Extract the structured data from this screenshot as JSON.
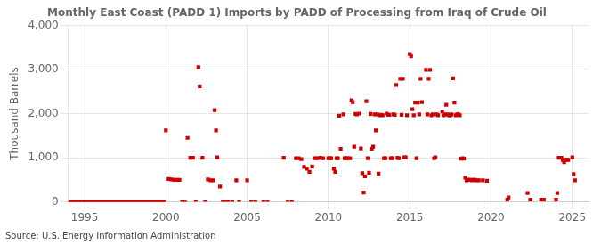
{
  "chart_data": {
    "type": "scatter",
    "title": "Monthly East Coast (PADD 1) Imports by PADD of Processing from Iraq of Crude Oil",
    "ylabel": "Thousand Barrels",
    "source": "Source: U.S. Energy Information Administration",
    "color": "#cc0000",
    "marker": "square",
    "grid": true,
    "xlim": [
      1994.0,
      2026.0
    ],
    "ylim": [
      0,
      4000
    ],
    "xticks": [
      1995,
      2000,
      2005,
      2010,
      2015,
      2020,
      2025
    ],
    "yticks": [
      0,
      {
        "value": 1000,
        "label": "1,000"
      },
      {
        "value": 2000,
        "label": "2,000"
      },
      {
        "value": 3000,
        "label": "3,000"
      },
      {
        "value": 4000,
        "label": "4,000"
      }
    ],
    "x": [
      1994.083,
      1994.167,
      1994.25,
      1994.333,
      1994.417,
      1994.5,
      1994.583,
      1994.667,
      1994.75,
      1994.833,
      1994.917,
      1995.0,
      1995.083,
      1995.167,
      1995.25,
      1995.333,
      1995.417,
      1995.5,
      1995.583,
      1995.667,
      1995.75,
      1995.833,
      1995.917,
      1996.0,
      1996.083,
      1996.167,
      1996.25,
      1996.333,
      1996.417,
      1996.5,
      1996.583,
      1996.667,
      1996.75,
      1996.833,
      1996.917,
      1997.0,
      1997.083,
      1997.167,
      1997.25,
      1997.333,
      1997.417,
      1997.5,
      1997.583,
      1997.667,
      1997.75,
      1997.833,
      1997.917,
      1998.0,
      1998.083,
      1998.167,
      1998.25,
      1998.333,
      1998.417,
      1998.5,
      1998.583,
      1998.667,
      1998.75,
      1998.833,
      1998.917,
      1999.0,
      1999.083,
      1999.167,
      1999.25,
      1999.333,
      1999.417,
      1999.5,
      1999.583,
      1999.667,
      1999.75,
      1999.833,
      1999.917,
      2000.0,
      2000.167,
      2000.333,
      2000.5,
      2000.667,
      2000.833,
      2001.0,
      2001.167,
      2001.333,
      2001.5,
      2001.667,
      2001.833,
      2002.0,
      2002.083,
      2002.25,
      2002.417,
      2002.583,
      2002.75,
      2002.917,
      2003.0,
      2003.083,
      2003.167,
      2003.333,
      2003.5,
      2003.667,
      2003.833,
      2004.083,
      2004.333,
      2004.5,
      2005.0,
      2005.25,
      2005.5,
      2006.0,
      2006.25,
      2007.25,
      2007.5,
      2007.75,
      2008.0,
      2008.167,
      2008.333,
      2008.5,
      2008.667,
      2008.833,
      2009.0,
      2009.167,
      2009.333,
      2009.5,
      2009.667,
      2010.0,
      2010.083,
      2010.167,
      2010.333,
      2010.417,
      2010.5,
      2010.583,
      2010.667,
      2010.75,
      2010.917,
      2011.0,
      2011.083,
      2011.167,
      2011.333,
      2011.417,
      2011.5,
      2011.583,
      2011.667,
      2011.75,
      2011.917,
      2012.0,
      2012.083,
      2012.167,
      2012.25,
      2012.333,
      2012.417,
      2012.5,
      2012.583,
      2012.667,
      2012.75,
      2012.833,
      2012.917,
      2013.0,
      2013.083,
      2013.167,
      2013.25,
      2013.333,
      2013.417,
      2013.5,
      2013.583,
      2013.667,
      2013.75,
      2013.833,
      2013.917,
      2014.0,
      2014.083,
      2014.167,
      2014.25,
      2014.333,
      2014.417,
      2014.5,
      2014.583,
      2014.667,
      2014.75,
      2014.833,
      2015.0,
      2015.083,
      2015.167,
      2015.25,
      2015.333,
      2015.417,
      2015.5,
      2015.583,
      2015.667,
      2015.75,
      2016.0,
      2016.083,
      2016.167,
      2016.25,
      2016.333,
      2016.417,
      2016.5,
      2016.583,
      2016.667,
      2016.75,
      2017.0,
      2017.083,
      2017.167,
      2017.25,
      2017.333,
      2017.417,
      2017.5,
      2017.583,
      2017.667,
      2017.75,
      2017.833,
      2017.917,
      2018.0,
      2018.083,
      2018.167,
      2018.25,
      2018.333,
      2018.417,
      2018.5,
      2018.583,
      2018.667,
      2018.75,
      2018.833,
      2018.917,
      2019.0,
      2019.083,
      2019.25,
      2019.5,
      2019.75,
      2021.0,
      2021.083,
      2022.25,
      2022.417,
      2023.083,
      2023.25,
      2024.0,
      2024.083,
      2024.167,
      2024.333,
      2024.417,
      2024.5,
      2024.583,
      2024.667,
      2024.75,
      2025.0,
      2025.083,
      2025.167
    ],
    "values": [
      0,
      0,
      0,
      0,
      0,
      0,
      0,
      0,
      0,
      0,
      0,
      0,
      0,
      0,
      0,
      0,
      0,
      0,
      0,
      0,
      0,
      0,
      0,
      0,
      0,
      0,
      0,
      0,
      0,
      0,
      0,
      0,
      0,
      0,
      0,
      0,
      0,
      0,
      0,
      0,
      0,
      0,
      0,
      0,
      0,
      0,
      0,
      0,
      0,
      0,
      0,
      0,
      0,
      0,
      0,
      0,
      0,
      0,
      0,
      0,
      0,
      0,
      0,
      0,
      0,
      0,
      0,
      0,
      0,
      0,
      0,
      1620,
      520,
      510,
      500,
      500,
      500,
      0,
      0,
      1450,
      1000,
      1000,
      0,
      3050,
      2620,
      1000,
      0,
      510,
      490,
      490,
      2080,
      1620,
      1010,
      350,
      0,
      0,
      0,
      0,
      490,
      0,
      490,
      0,
      0,
      0,
      0,
      1000,
      0,
      0,
      990,
      990,
      970,
      790,
      750,
      680,
      800,
      990,
      990,
      1000,
      990,
      990,
      990,
      990,
      750,
      680,
      990,
      990,
      1950,
      1200,
      1980,
      990,
      990,
      990,
      990,
      2300,
      2260,
      1250,
      1990,
      1980,
      2000,
      1210,
      650,
      210,
      580,
      2280,
      990,
      660,
      1990,
      1200,
      1250,
      1980,
      1620,
      1980,
      640,
      1960,
      1970,
      1960,
      990,
      990,
      2000,
      1970,
      1970,
      990,
      990,
      1980,
      1970,
      2650,
      1000,
      990,
      2790,
      1970,
      2790,
      1010,
      1010,
      1960,
      3350,
      3300,
      2100,
      1960,
      2250,
      990,
      2250,
      1980,
      2790,
      2260,
      2990,
      1980,
      2790,
      2990,
      1960,
      1980,
      990,
      1010,
      1980,
      1960,
      2050,
      1960,
      1980,
      2200,
      1980,
      1960,
      1960,
      1980,
      2800,
      2250,
      1960,
      1980,
      1980,
      1960,
      980,
      990,
      980,
      550,
      490,
      500,
      500,
      500,
      490,
      500,
      500,
      490,
      490,
      490,
      480,
      50,
      100,
      200,
      50,
      50,
      50,
      50,
      200,
      1000,
      1000,
      950,
      900,
      950,
      960,
      950,
      1010,
      630,
      490
    ]
  }
}
